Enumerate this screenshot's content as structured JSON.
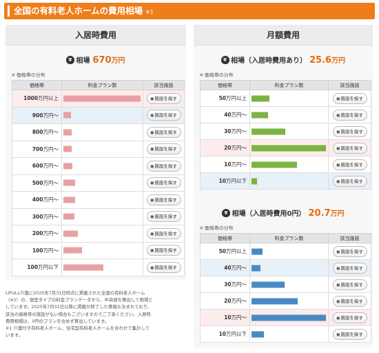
{
  "header": {
    "title": "全国の有料老人ホームの費用相場",
    "note_mark": "※1"
  },
  "initial": {
    "heading": "入居時費用",
    "stat_label": "相場",
    "stat_value": "670",
    "stat_unit": "万円",
    "dist_label": "価格帯の分布",
    "columns": [
      "価格帯",
      "料金プラン数",
      "該当施設"
    ],
    "button_label": "施設を探す",
    "bar_color": "#e8a0a4",
    "rows": [
      {
        "price": "1000",
        "unit": "万円以上",
        "ratio": 1.0,
        "hl": "pink"
      },
      {
        "price": "900",
        "unit": "万円～",
        "ratio": 0.1,
        "hl": "blue"
      },
      {
        "price": "800",
        "unit": "万円～",
        "ratio": 0.11,
        "hl": ""
      },
      {
        "price": "700",
        "unit": "万円～",
        "ratio": 0.11,
        "hl": ""
      },
      {
        "price": "600",
        "unit": "万円～",
        "ratio": 0.12,
        "hl": ""
      },
      {
        "price": "500",
        "unit": "万円～",
        "ratio": 0.15,
        "hl": ""
      },
      {
        "price": "400",
        "unit": "万円～",
        "ratio": 0.15,
        "hl": ""
      },
      {
        "price": "300",
        "unit": "万円～",
        "ratio": 0.14,
        "hl": ""
      },
      {
        "price": "200",
        "unit": "万円～",
        "ratio": 0.19,
        "hl": ""
      },
      {
        "price": "100",
        "unit": "万円～",
        "ratio": 0.24,
        "hl": ""
      },
      {
        "price": "100",
        "unit": "万円以下",
        "ratio": 0.52,
        "hl": ""
      }
    ]
  },
  "monthly_with": {
    "heading": "月額費用",
    "stat_label": "相場（入居時費用あり）",
    "stat_value": "25.6",
    "stat_unit": "万円",
    "dist_label": "価格帯の分布",
    "columns": [
      "価格帯",
      "料金プラン数",
      "該当施設"
    ],
    "button_label": "施設を探す",
    "bar_color": "#7cb342",
    "rows": [
      {
        "price": "50",
        "unit": "万円以上",
        "ratio": 0.24,
        "hl": ""
      },
      {
        "price": "40",
        "unit": "万円～",
        "ratio": 0.22,
        "hl": ""
      },
      {
        "price": "30",
        "unit": "万円～",
        "ratio": 0.45,
        "hl": ""
      },
      {
        "price": "20",
        "unit": "万円～",
        "ratio": 1.0,
        "hl": "pink"
      },
      {
        "price": "10",
        "unit": "万円～",
        "ratio": 0.61,
        "hl": ""
      },
      {
        "price": "10",
        "unit": "万円以下",
        "ratio": 0.07,
        "hl": "blue"
      }
    ]
  },
  "monthly_without": {
    "stat_label": "相場（入居時費用0円）",
    "stat_value": "20.7",
    "stat_unit": "万円",
    "dist_label": "価格帯の分布",
    "columns": [
      "価格帯",
      "料金プラン数",
      "該当施設"
    ],
    "button_label": "施設を探す",
    "bar_color": "#4a8ac4",
    "rows": [
      {
        "price": "50",
        "unit": "万円以上",
        "ratio": 0.15,
        "hl": ""
      },
      {
        "price": "40",
        "unit": "万円～",
        "ratio": 0.12,
        "hl": "blue"
      },
      {
        "price": "30",
        "unit": "万円～",
        "ratio": 0.44,
        "hl": ""
      },
      {
        "price": "20",
        "unit": "万円～",
        "ratio": 0.62,
        "hl": ""
      },
      {
        "price": "10",
        "unit": "万円～",
        "ratio": 1.0,
        "hl": "pink"
      },
      {
        "price": "10",
        "unit": "万円以下",
        "ratio": 0.17,
        "hl": ""
      }
    ]
  },
  "note_lines": [
    "LIFULL介護に2025年7月31日時点に掲載された全国の有料老人ホーム",
    "（※1）の、個室タイプの料金プランデータから、中央値を算出して相場と",
    "しています。2025年7月31日以降に掲載が終了した情報も含まれており、",
    "該当の価格帯の施設がない場合もございますのでご了承ください。入居時",
    "費用相場は、0円のプランを含めず算出しています。",
    "※1 介護付き有料老人ホーム、住宅型有料老人ホームを合わせて集計して",
    "います。"
  ]
}
